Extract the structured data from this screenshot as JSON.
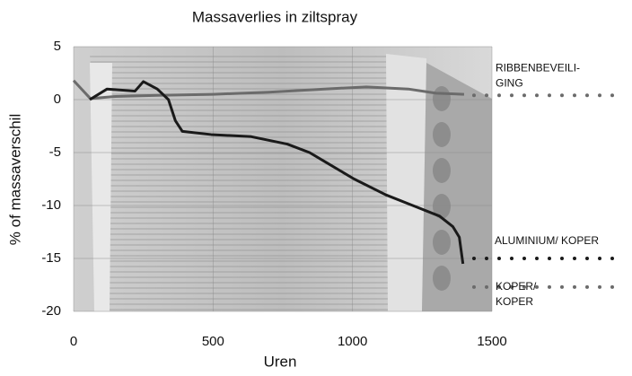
{
  "chart_data": {
    "type": "line",
    "title": "Massaverlies in ziltspray",
    "x_label": "Uren",
    "y_label": "% of massaverschil",
    "xlim": [
      0,
      1500
    ],
    "xticks": [
      0,
      500,
      1000,
      1500
    ],
    "ylim": [
      -20,
      5
    ],
    "yticks": [
      -20,
      -15,
      -10,
      -5,
      0,
      5
    ],
    "grid": true,
    "series": [
      {
        "name": [
          "RIBBENBEVEILI-",
          "GING"
        ],
        "color": "#6b6b6b",
        "x": [
          0,
          60,
          150,
          300,
          500,
          700,
          900,
          1050,
          1200,
          1300,
          1400
        ],
        "values": [
          1.8,
          0.1,
          0.3,
          0.4,
          0.5,
          0.7,
          1.0,
          1.2,
          1.0,
          0.6,
          0.5
        ],
        "leader": 0.4
      },
      {
        "name": [
          "ALUMINIUM/ KOPER"
        ],
        "color": "#1a1a1a",
        "x": [
          58,
          120,
          220,
          250,
          300,
          340,
          365,
          390,
          493,
          637,
          766,
          846,
          910,
          1006,
          1120,
          1216,
          1312,
          1360,
          1383,
          1396
        ],
        "values": [
          0,
          1.0,
          0.8,
          1.7,
          1.0,
          0,
          -2,
          -3,
          -3.3,
          -3.5,
          -4.2,
          -5,
          -6,
          -7.5,
          -9,
          -10,
          -11,
          -12,
          -13,
          -15.5
        ],
        "leader": -15
      },
      {
        "name": [
          "KOPER/",
          "KOPER"
        ],
        "color": "#6b6b6b",
        "x": [],
        "values": [],
        "leader": -17.7
      }
    ]
  }
}
